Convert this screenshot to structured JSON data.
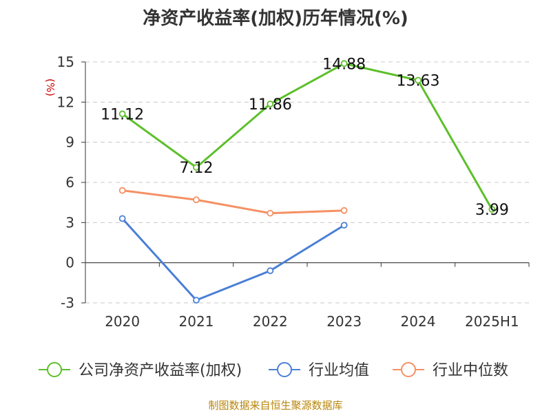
{
  "chart_data": {
    "type": "line",
    "title": "净资产收益率(加权)历年情况(%)",
    "ylabel": "(%)",
    "categories": [
      "2020",
      "2021",
      "2022",
      "2023",
      "2024",
      "2025H1"
    ],
    "ylim": [
      -3,
      15
    ],
    "yticks": [
      -3,
      0,
      3,
      6,
      9,
      12,
      15
    ],
    "grid": true,
    "legend_position": "bottom",
    "series": [
      {
        "name": "公司净资产收益率(加权)",
        "color": "#5cbf2a",
        "values": [
          11.12,
          7.12,
          11.86,
          14.88,
          13.63,
          3.99
        ],
        "labels": [
          "11.12",
          "7.12",
          "11.86",
          "14.88",
          "13.63",
          "3.99"
        ],
        "show_labels": true
      },
      {
        "name": "行业均值",
        "color": "#4a7fd6",
        "values": [
          3.3,
          -2.8,
          -0.6,
          2.8,
          null,
          null
        ],
        "show_labels": false
      },
      {
        "name": "行业中位数",
        "color": "#f59063",
        "values": [
          5.4,
          4.7,
          3.7,
          3.9,
          null,
          null
        ],
        "show_labels": false
      }
    ]
  },
  "source": "制图数据来自恒生聚源数据库"
}
